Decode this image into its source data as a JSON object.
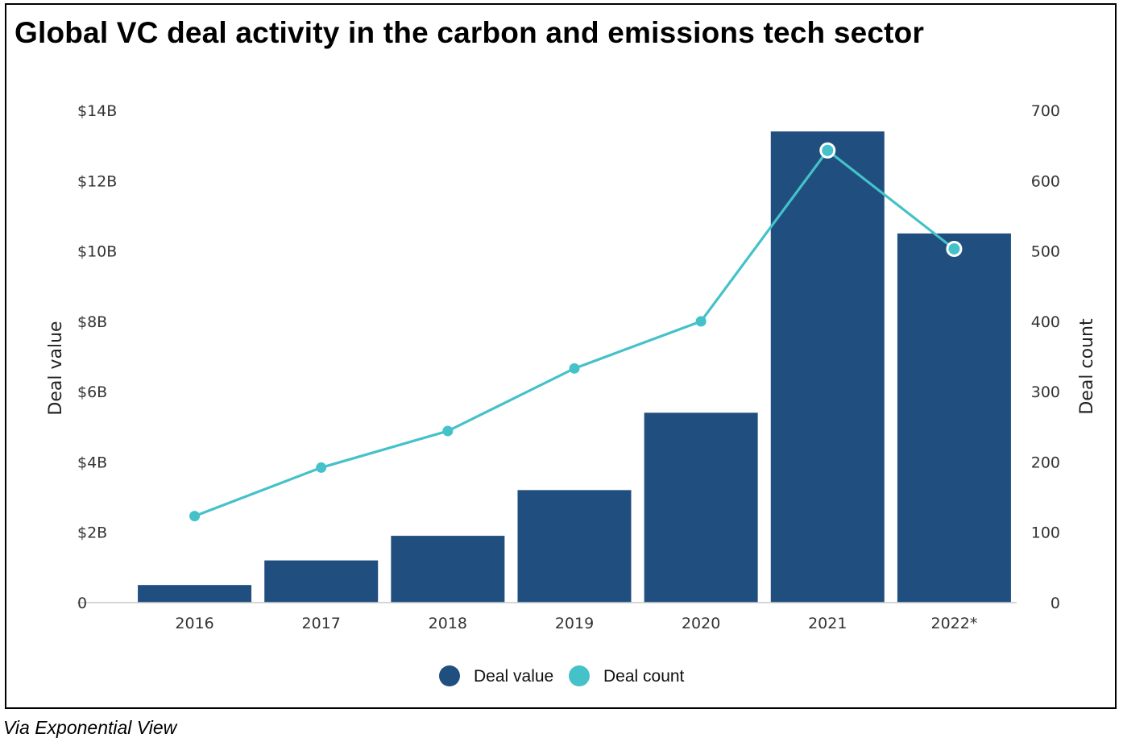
{
  "title": "Global VC deal activity in the carbon and emissions tech sector",
  "caption": "Via Exponential View",
  "chart_data": {
    "type": "bar",
    "categories": [
      "2016",
      "2017",
      "2018",
      "2019",
      "2020",
      "2021",
      "2022*"
    ],
    "series": [
      {
        "name": "Deal value",
        "type": "bar",
        "axis": "left",
        "color": "#1f4e7f",
        "values": [
          0.5,
          1.2,
          1.9,
          3.2,
          5.4,
          13.4,
          10.5
        ]
      },
      {
        "name": "Deal count",
        "type": "line",
        "axis": "right",
        "color": "#45c1c9",
        "values": [
          123,
          192,
          244,
          333,
          400,
          643,
          503
        ]
      }
    ],
    "ylabel_left": "Deal value",
    "ylabel_right": "Deal count",
    "ylim_left": [
      0,
      14
    ],
    "ylim_right": [
      0,
      700
    ],
    "left_ticks": [
      "0",
      "$2B",
      "$4B",
      "$6B",
      "$8B",
      "$10B",
      "$12B",
      "$14B"
    ],
    "right_ticks": [
      "0",
      "100",
      "200",
      "300",
      "400",
      "500",
      "600",
      "700"
    ],
    "legend": [
      "Deal value",
      "Deal count"
    ],
    "legend_position": "bottom-center",
    "grid": false,
    "highlighted_points": [
      "2021",
      "2022*"
    ]
  }
}
